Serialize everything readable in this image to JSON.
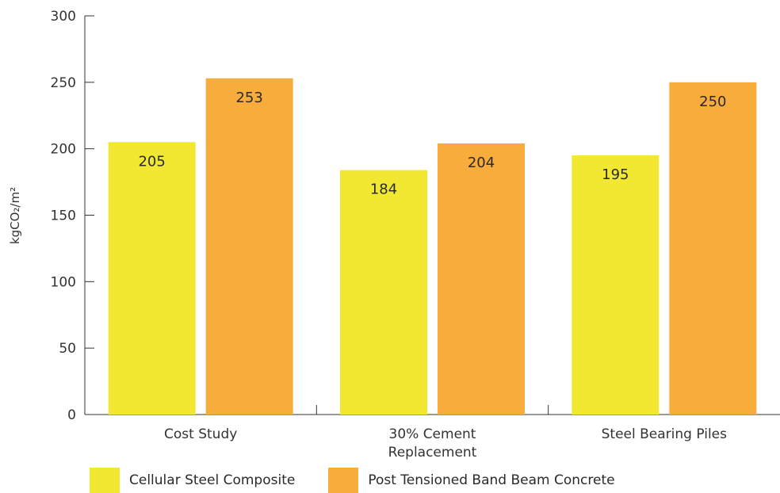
{
  "chart_data": {
    "type": "bar",
    "categories": [
      "Cost Study",
      "30% Cement Replacement",
      "Steel Bearing Piles"
    ],
    "series": [
      {
        "name": "Cellular Steel Composite",
        "values": [
          205,
          184,
          195
        ],
        "color": "#f2e831"
      },
      {
        "name": "Post Tensioned Band Beam Concrete",
        "values": [
          253,
          204,
          250
        ],
        "color": "#f8ac3c"
      }
    ],
    "ylabel": "kgCO₂/m²",
    "ylim": [
      0,
      300
    ],
    "yticks": [
      0,
      50,
      100,
      150,
      200,
      250,
      300
    ],
    "grid": false,
    "legend_position": "bottom-left",
    "category_label_lines": [
      [
        "Cost Study"
      ],
      [
        "30% Cement",
        "Replacement"
      ],
      [
        "Steel Bearing Piles"
      ]
    ]
  }
}
